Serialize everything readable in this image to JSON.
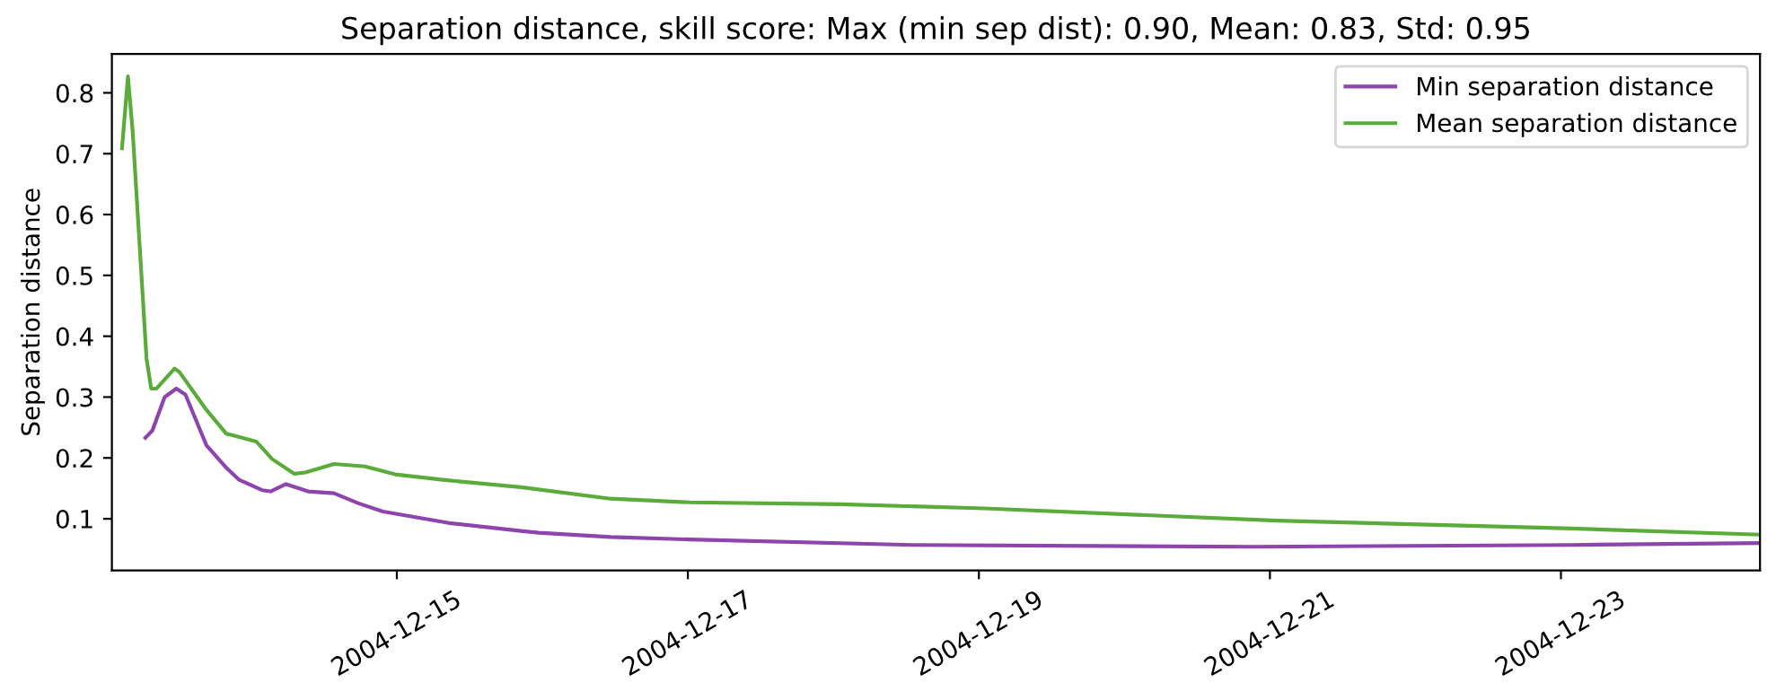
{
  "chart_data": {
    "type": "line",
    "title": "Separation distance, skill score: Max (min sep dist): 0.90, Mean: 0.83, Std: 0.95",
    "ylabel": "Separation distance",
    "xlim": [
      "2004-12-13T01:00",
      "2004-12-24T08:50"
    ],
    "ylim": [
      0.015,
      0.864
    ],
    "xticks": [
      "2004-12-15",
      "2004-12-17",
      "2004-12-19",
      "2004-12-21",
      "2004-12-23"
    ],
    "yticks": [
      0.1,
      0.2,
      0.3,
      0.4,
      0.5,
      0.6,
      0.7,
      0.8
    ],
    "legend": "top right",
    "grid": false,
    "series": [
      {
        "name": "Min separation distance",
        "color": "#8e44ad",
        "x": [
          "2004-12-13T06:31",
          "2004-12-13T07:41",
          "2004-12-13T09:42",
          "2004-12-13T11:38",
          "2004-12-13T13:08",
          "2004-12-13T16:35",
          "2004-12-13T19:51",
          "2004-12-13T22:00",
          "2004-12-14T01:47",
          "2004-12-14T03:10",
          "2004-12-14T05:43",
          "2004-12-14T09:23",
          "2004-12-14T13:38",
          "2004-12-14T17:47",
          "2004-12-14T21:43",
          "2004-12-15T08:36",
          "2004-12-15T20:27",
          "2004-12-15T23:24",
          "2004-12-16T11:15",
          "2004-12-17T00:17",
          "2004-12-18T13:02",
          "2004-12-20T21:20",
          "2004-12-23T01:46",
          "2004-12-24T08:50"
        ],
        "values": [
          0.233,
          0.245,
          0.3,
          0.314,
          0.304,
          0.221,
          0.184,
          0.164,
          0.147,
          0.145,
          0.157,
          0.145,
          0.142,
          0.125,
          0.112,
          0.093,
          0.08,
          0.077,
          0.07,
          0.066,
          0.057,
          0.054,
          0.057,
          0.06
        ]
      },
      {
        "name": "Mean separation distance",
        "color": "#5aab3a",
        "x": [
          "2004-12-13T02:40",
          "2004-12-13T03:39",
          "2004-12-13T04:26",
          "2004-12-13T06:43",
          "2004-12-13T07:29",
          "2004-12-13T08:22",
          "2004-12-13T11:21",
          "2004-12-13T12:09",
          "2004-12-13T16:35",
          "2004-12-13T19:51",
          "2004-12-14T00:48",
          "2004-12-14T03:27",
          "2004-12-14T07:06",
          "2004-12-14T08:53",
          "2004-12-14T13:38",
          "2004-12-14T18:45",
          "2004-12-14T23:43",
          "2004-12-15T08:36",
          "2004-12-15T20:27",
          "2004-12-16T11:15",
          "2004-12-17T00:17",
          "2004-12-18T01:11",
          "2004-12-19T00:53",
          "2004-12-21T01:11",
          "2004-12-23T01:46",
          "2004-12-24T08:50"
        ],
        "values": [
          0.709,
          0.827,
          0.736,
          0.363,
          0.314,
          0.314,
          0.347,
          0.341,
          0.279,
          0.24,
          0.227,
          0.198,
          0.174,
          0.176,
          0.19,
          0.186,
          0.173,
          0.163,
          0.152,
          0.133,
          0.127,
          0.124,
          0.117,
          0.097,
          0.084,
          0.074
        ]
      }
    ]
  }
}
